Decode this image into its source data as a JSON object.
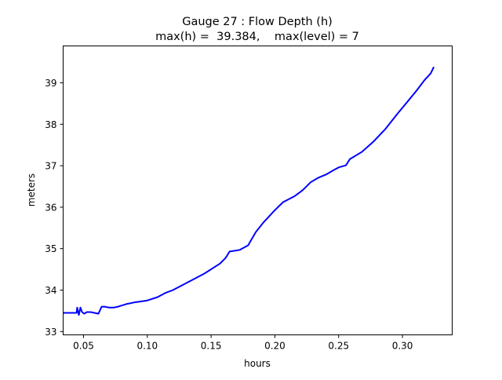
{
  "chart_data": {
    "type": "line",
    "title": "Gauge 27 : Flow Depth (h)",
    "subtitle": "max(h) =  39.384,    max(level) = 7",
    "xlabel": "hours",
    "ylabel": "meters",
    "xlim": [
      0.034,
      0.339
    ],
    "ylim": [
      32.92,
      39.89
    ],
    "xticks": [
      0.05,
      0.1,
      0.15,
      0.2,
      0.25,
      0.3
    ],
    "xtick_labels": [
      "0.05",
      "0.10",
      "0.15",
      "0.20",
      "0.25",
      "0.30"
    ],
    "yticks": [
      33,
      34,
      35,
      36,
      37,
      38,
      39
    ],
    "ytick_labels": [
      "33",
      "34",
      "35",
      "36",
      "37",
      "38",
      "39"
    ],
    "grid": false,
    "series": [
      {
        "name": "h",
        "color": "#0000ff",
        "x": [
          0.034,
          0.0445,
          0.045,
          0.0463,
          0.0475,
          0.0488,
          0.0506,
          0.0525,
          0.0555,
          0.0586,
          0.0617,
          0.0642,
          0.0666,
          0.0697,
          0.074,
          0.077,
          0.0833,
          0.0894,
          0.1,
          0.1079,
          0.114,
          0.12,
          0.1325,
          0.1448,
          0.157,
          0.1615,
          0.1645,
          0.1725,
          0.179,
          0.185,
          0.191,
          0.2,
          0.2064,
          0.2157,
          0.2218,
          0.228,
          0.234,
          0.2402,
          0.2464,
          0.25,
          0.2557,
          0.2588,
          0.268,
          0.2772,
          0.2865,
          0.2957,
          0.3049,
          0.311,
          0.3172,
          0.3222,
          0.3246
        ],
        "y": [
          33.45,
          33.45,
          33.58,
          33.4,
          33.58,
          33.47,
          33.43,
          33.47,
          33.47,
          33.45,
          33.43,
          33.6,
          33.6,
          33.58,
          33.58,
          33.6,
          33.66,
          33.7,
          33.75,
          33.83,
          33.93,
          34.0,
          34.2,
          34.4,
          34.64,
          34.78,
          34.93,
          34.97,
          35.08,
          35.4,
          35.63,
          35.93,
          36.12,
          36.27,
          36.41,
          36.6,
          36.71,
          36.79,
          36.9,
          36.96,
          37.01,
          37.16,
          37.33,
          37.58,
          37.88,
          38.24,
          38.58,
          38.81,
          39.06,
          39.23,
          39.384
        ]
      }
    ]
  }
}
